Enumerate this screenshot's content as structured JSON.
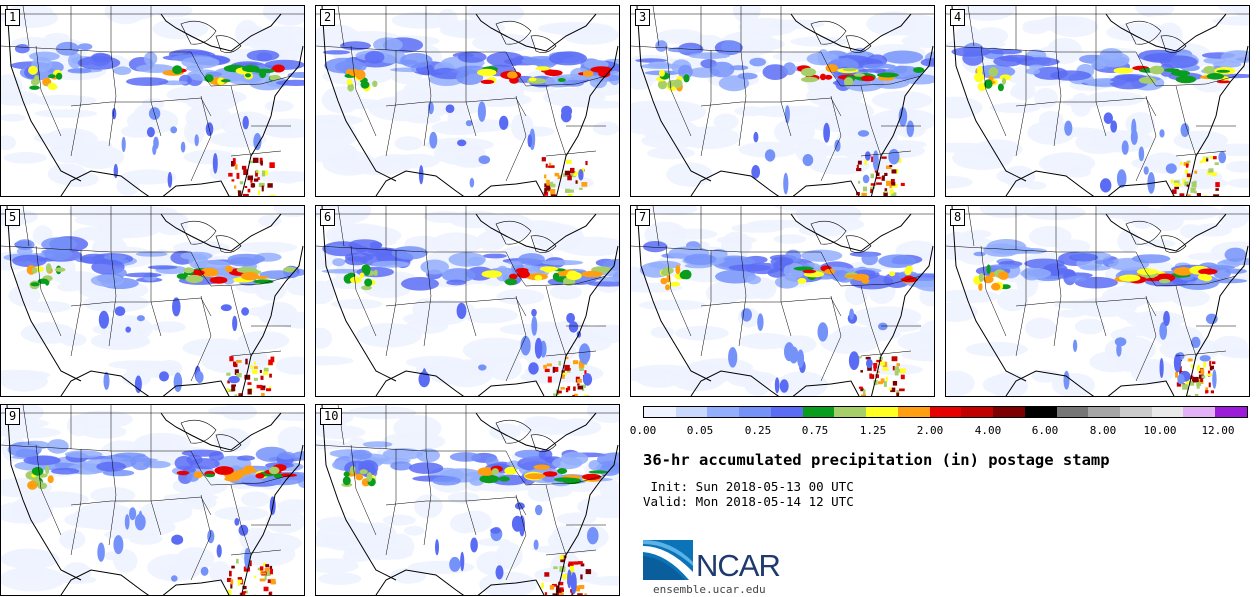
{
  "panels": [
    {
      "label": "1"
    },
    {
      "label": "2"
    },
    {
      "label": "3"
    },
    {
      "label": "4"
    },
    {
      "label": "5"
    },
    {
      "label": "6"
    },
    {
      "label": "7"
    },
    {
      "label": "8"
    },
    {
      "label": "9"
    },
    {
      "label": "10"
    }
  ],
  "colorbar": {
    "colors": [
      "#eef3ff",
      "#c9d8fd",
      "#93aefc",
      "#7592f9",
      "#5a6cf4",
      "#089d1d",
      "#a6cf69",
      "#ffff20",
      "#ff9e10",
      "#e80000",
      "#c10000",
      "#7d0000",
      "#000000",
      "#767676",
      "#a5a5a5",
      "#cbcbcb",
      "#e9e9e9",
      "#e3b2f6",
      "#9b1bd8"
    ],
    "tick_labels": [
      "0.00",
      "0.05",
      "0.25",
      "0.75",
      "1.25",
      "2.00",
      "4.00",
      "6.00",
      "8.00",
      "10.00",
      "12.00"
    ]
  },
  "title": "36-hr accumulated precipitation (in) postage stamp",
  "init": " Init: Sun 2018-05-13 00 UTC",
  "valid": "Valid: Mon 2018-05-14 12 UTC",
  "logo": {
    "text": "NCAR",
    "url": "ensemble.ucar.edu"
  }
}
